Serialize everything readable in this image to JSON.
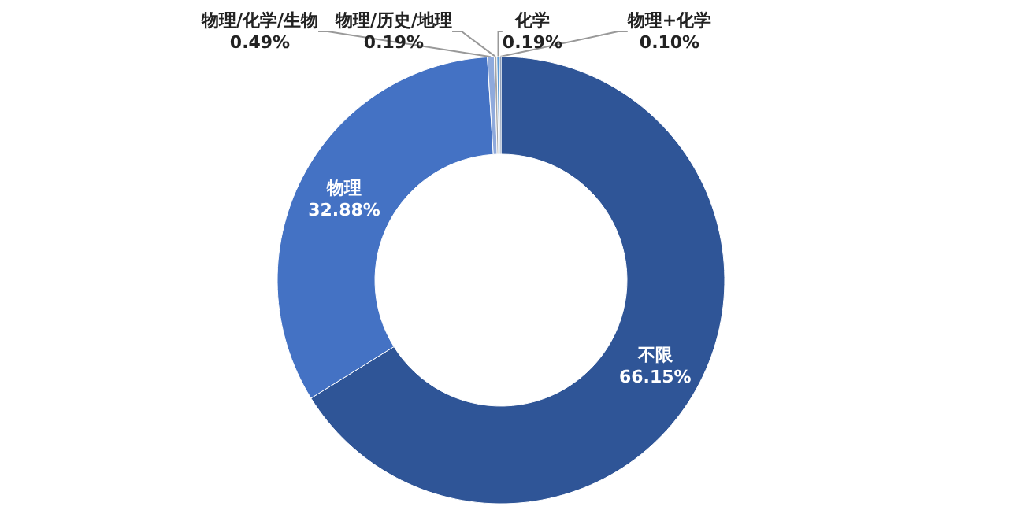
{
  "chart_data": {
    "type": "donut",
    "categories": [
      "不限",
      "物理",
      "物理/化学/生物",
      "物理/历史/地理",
      "化学",
      "物理+化学"
    ],
    "values": [
      66.15,
      32.88,
      0.49,
      0.19,
      0.19,
      0.1
    ],
    "value_labels": [
      "66.15%",
      "32.88%",
      "0.49%",
      "0.19%",
      "0.19%",
      "0.10%"
    ],
    "colors": [
      "#2f5597",
      "#4472c4",
      "#8faadc",
      "#a5a5a5",
      "#5b9bd5",
      "#264478"
    ],
    "legend": false
  }
}
